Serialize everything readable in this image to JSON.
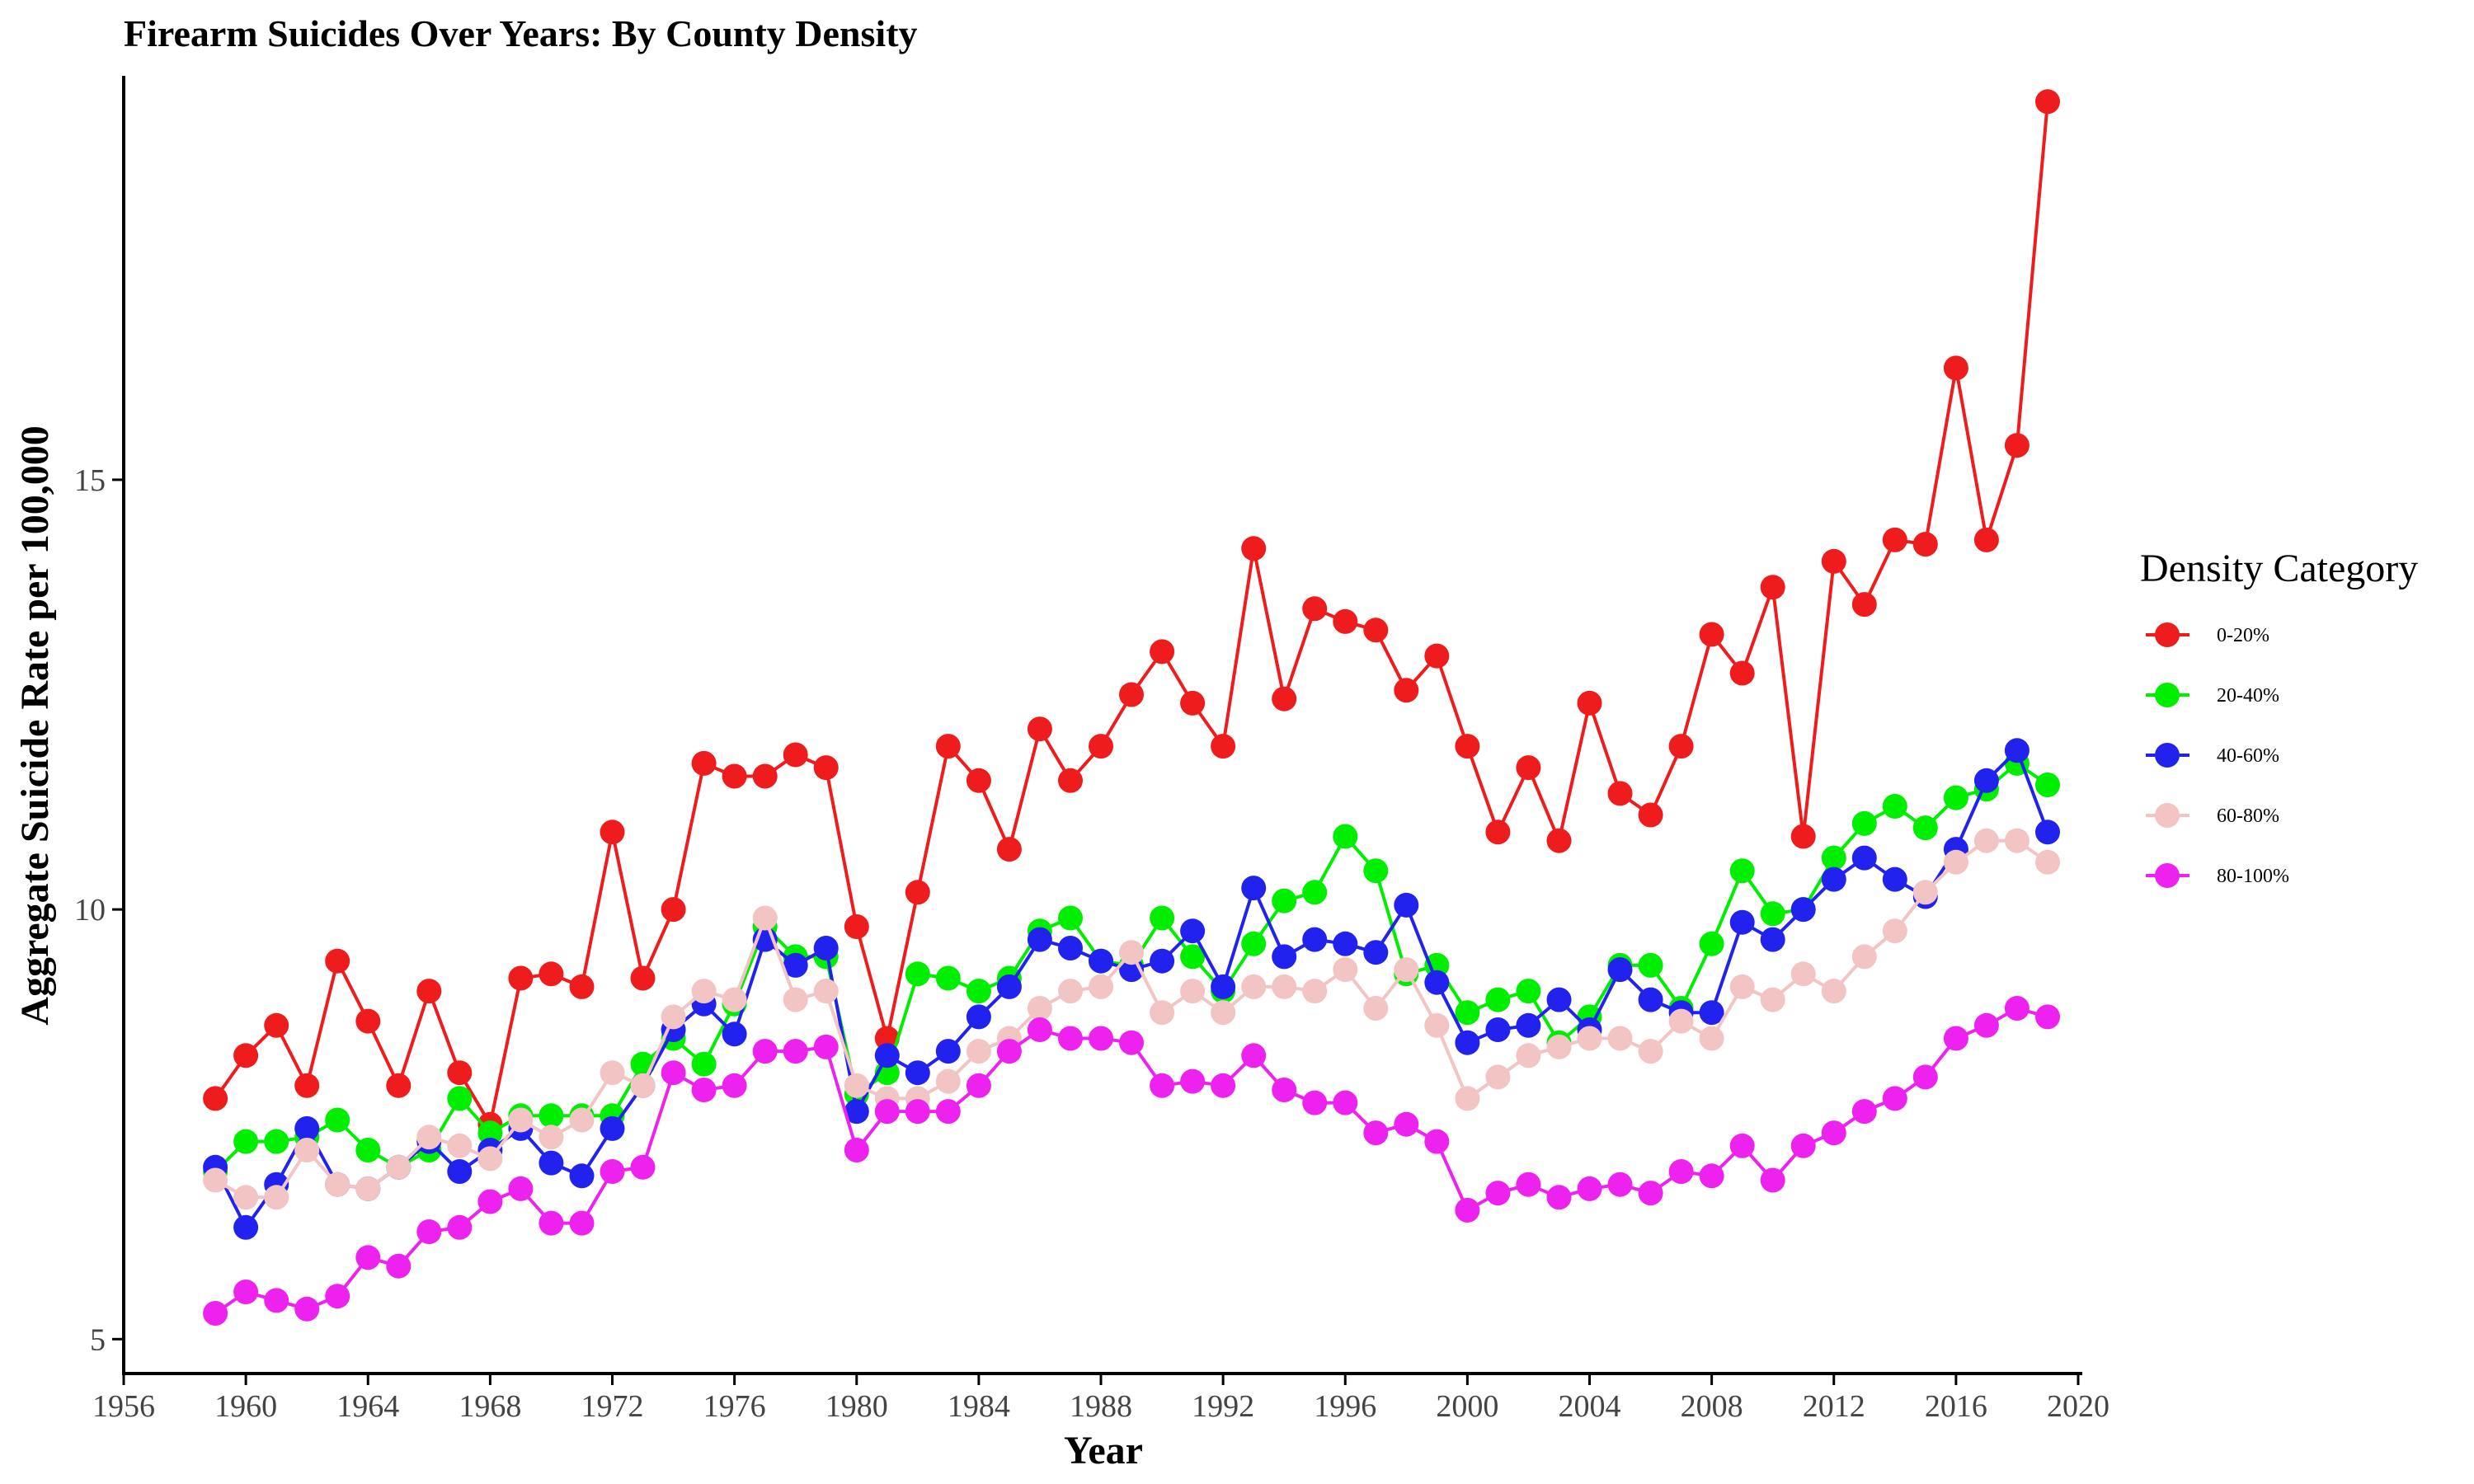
{
  "chart_data": {
    "type": "line",
    "title": "Firearm Suicides Over Years: By County Density",
    "xlabel": "Year",
    "ylabel": "Aggregate Suicide Rate per 100,000",
    "xlim": [
      1956,
      2020
    ],
    "ylim": [
      4.6,
      19.7
    ],
    "x_ticks": [
      1956,
      1960,
      1964,
      1968,
      1972,
      1976,
      1980,
      1984,
      1988,
      1992,
      1996,
      2000,
      2004,
      2008,
      2012,
      2016,
      2020
    ],
    "y_ticks": [
      5,
      10,
      15
    ],
    "grid": false,
    "legend": {
      "title": "Density Category",
      "placement": "right"
    },
    "x": [
      1959,
      1960,
      1961,
      1962,
      1963,
      1964,
      1965,
      1966,
      1967,
      1968,
      1969,
      1970,
      1971,
      1972,
      1973,
      1974,
      1975,
      1976,
      1977,
      1978,
      1979,
      1980,
      1981,
      1982,
      1983,
      1984,
      1985,
      1986,
      1987,
      1988,
      1989,
      1990,
      1991,
      1992,
      1993,
      1994,
      1995,
      1996,
      1997,
      1998,
      1999,
      2000,
      2001,
      2002,
      2003,
      2004,
      2005,
      2006,
      2007,
      2008,
      2009,
      2010,
      2011,
      2012,
      2013,
      2014,
      2015,
      2016,
      2017,
      2018,
      2019
    ],
    "series": [
      {
        "name": "0-20%",
        "color": "#EE1C1C",
        "values": [
          7.8,
          8.3,
          8.65,
          7.95,
          9.4,
          8.7,
          7.95,
          9.05,
          8.1,
          7.5,
          9.2,
          9.25,
          9.1,
          10.9,
          9.2,
          10.0,
          11.7,
          11.55,
          11.55,
          11.8,
          11.65,
          9.8,
          8.5,
          10.2,
          11.9,
          11.5,
          10.7,
          12.1,
          11.5,
          11.9,
          12.5,
          13.0,
          12.4,
          11.9,
          14.2,
          12.45,
          13.5,
          13.35,
          13.25,
          12.55,
          12.95,
          11.9,
          10.9,
          11.65,
          10.8,
          12.4,
          11.35,
          11.1,
          11.9,
          13.2,
          12.75,
          13.75,
          10.85,
          14.05,
          13.55,
          14.3,
          14.25,
          16.3,
          14.3,
          15.4,
          19.4
        ]
      },
      {
        "name": "20-40%",
        "color": "#00EE00",
        "values": [
          6.95,
          7.3,
          7.3,
          7.35,
          7.55,
          7.2,
          7.0,
          7.2,
          7.8,
          7.4,
          7.6,
          7.6,
          7.6,
          7.6,
          8.2,
          8.5,
          8.2,
          8.9,
          9.8,
          9.45,
          9.45,
          7.85,
          8.1,
          9.25,
          9.2,
          9.05,
          9.2,
          9.75,
          9.9,
          9.4,
          9.35,
          9.9,
          9.45,
          9.05,
          9.6,
          10.1,
          10.2,
          10.85,
          10.45,
          9.25,
          9.35,
          8.8,
          8.95,
          9.05,
          8.45,
          8.75,
          9.35,
          9.35,
          8.85,
          9.6,
          10.45,
          9.95,
          10.0,
          10.6,
          11.0,
          11.2,
          10.95,
          11.3,
          11.4,
          11.7,
          11.45
        ]
      },
      {
        "name": "40-60%",
        "color": "#2222EE",
        "values": [
          7.0,
          6.3,
          6.8,
          7.45,
          6.8,
          6.75,
          7.0,
          7.3,
          6.95,
          7.2,
          7.45,
          7.05,
          6.9,
          7.45,
          7.95,
          8.6,
          8.9,
          8.55,
          9.65,
          9.35,
          9.55,
          7.65,
          8.3,
          8.1,
          8.35,
          8.75,
          9.1,
          9.65,
          9.55,
          9.4,
          9.3,
          9.4,
          9.75,
          9.1,
          10.25,
          9.45,
          9.65,
          9.6,
          9.5,
          10.05,
          9.15,
          8.45,
          8.6,
          8.65,
          8.95,
          8.6,
          9.3,
          8.95,
          8.8,
          8.8,
          9.85,
          9.65,
          10.0,
          10.35,
          10.6,
          10.35,
          10.15,
          10.7,
          11.5,
          11.85,
          10.9
        ]
      },
      {
        "name": "60-80%",
        "color": "#F2C4C4",
        "values": [
          6.85,
          6.65,
          6.65,
          7.2,
          6.8,
          6.75,
          7.0,
          7.35,
          7.25,
          7.1,
          7.55,
          7.35,
          7.55,
          8.1,
          7.95,
          8.75,
          9.05,
          8.95,
          9.9,
          8.95,
          9.05,
          7.95,
          7.8,
          7.8,
          8.0,
          8.35,
          8.5,
          8.85,
          9.05,
          9.1,
          9.5,
          8.8,
          9.05,
          8.8,
          9.1,
          9.1,
          9.05,
          9.3,
          8.85,
          9.3,
          8.65,
          7.8,
          8.05,
          8.3,
          8.4,
          8.5,
          8.5,
          8.35,
          8.7,
          8.5,
          9.1,
          8.95,
          9.25,
          9.05,
          9.45,
          9.75,
          10.2,
          10.55,
          10.8,
          10.8,
          10.55
        ]
      },
      {
        "name": "80-100%",
        "color": "#EE22EE",
        "values": [
          5.3,
          5.55,
          5.45,
          5.35,
          5.5,
          5.95,
          5.85,
          6.25,
          6.3,
          6.6,
          6.75,
          6.35,
          6.35,
          6.95,
          7.0,
          8.1,
          7.9,
          7.95,
          8.35,
          8.35,
          8.4,
          7.2,
          7.65,
          7.65,
          7.65,
          7.95,
          8.35,
          8.6,
          8.5,
          8.5,
          8.45,
          7.95,
          8.0,
          7.95,
          8.3,
          7.9,
          7.75,
          7.75,
          7.4,
          7.5,
          7.3,
          6.5,
          6.7,
          6.8,
          6.65,
          6.75,
          6.8,
          6.7,
          6.95,
          6.9,
          7.25,
          6.85,
          7.25,
          7.4,
          7.65,
          7.8,
          8.05,
          8.5,
          8.65,
          8.85,
          8.75
        ]
      }
    ]
  }
}
